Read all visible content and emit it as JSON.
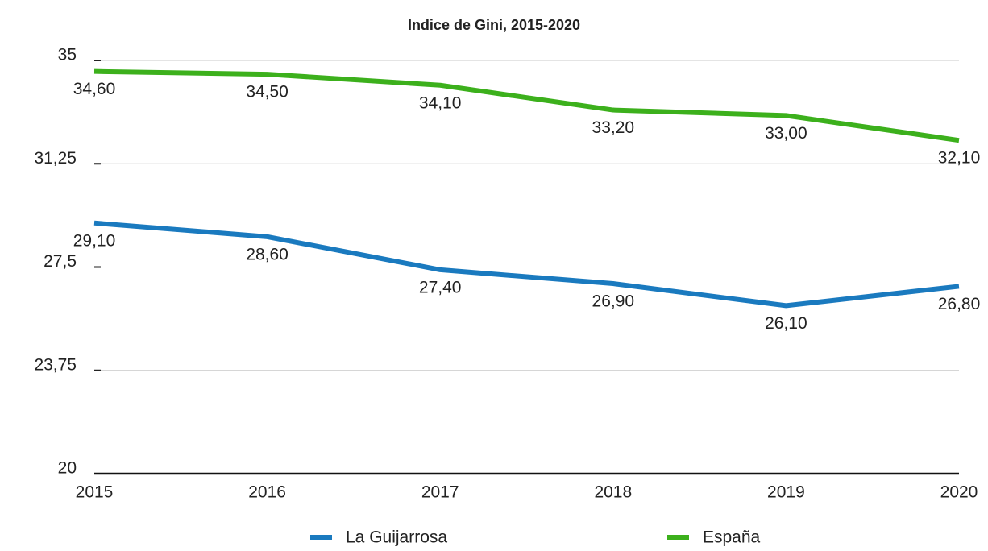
{
  "chart_data": {
    "type": "line",
    "title": "Indice de Gini, 2015-2020",
    "x": [
      2015,
      2016,
      2017,
      2018,
      2019,
      2020
    ],
    "xlim": [
      2015,
      2020
    ],
    "xticks": [
      2015,
      2016,
      2017,
      2018,
      2019,
      2020
    ],
    "ylim": [
      20,
      35
    ],
    "yticks": [
      20,
      {
        "value": 23.75,
        "label": "23,75"
      },
      {
        "value": 27.5,
        "label": "27,5"
      },
      {
        "value": 31.25,
        "label": "31,25"
      },
      35
    ],
    "grid": true,
    "legend": "bottom",
    "series": [
      {
        "name": "La Guijarrosa",
        "color": "#1a7abf",
        "values": [
          29.1,
          28.6,
          27.4,
          26.9,
          26.1,
          26.8
        ],
        "value_labels": [
          "29,10",
          "28,60",
          "27,40",
          "26,90",
          "26,10",
          "26,80"
        ]
      },
      {
        "name": "España",
        "color": "#3cb01c",
        "values": [
          34.6,
          34.5,
          34.1,
          33.2,
          33.0,
          32.1
        ],
        "value_labels": [
          "34,60",
          "34,50",
          "34,10",
          "33,20",
          "33,00",
          "32,10"
        ]
      }
    ]
  }
}
